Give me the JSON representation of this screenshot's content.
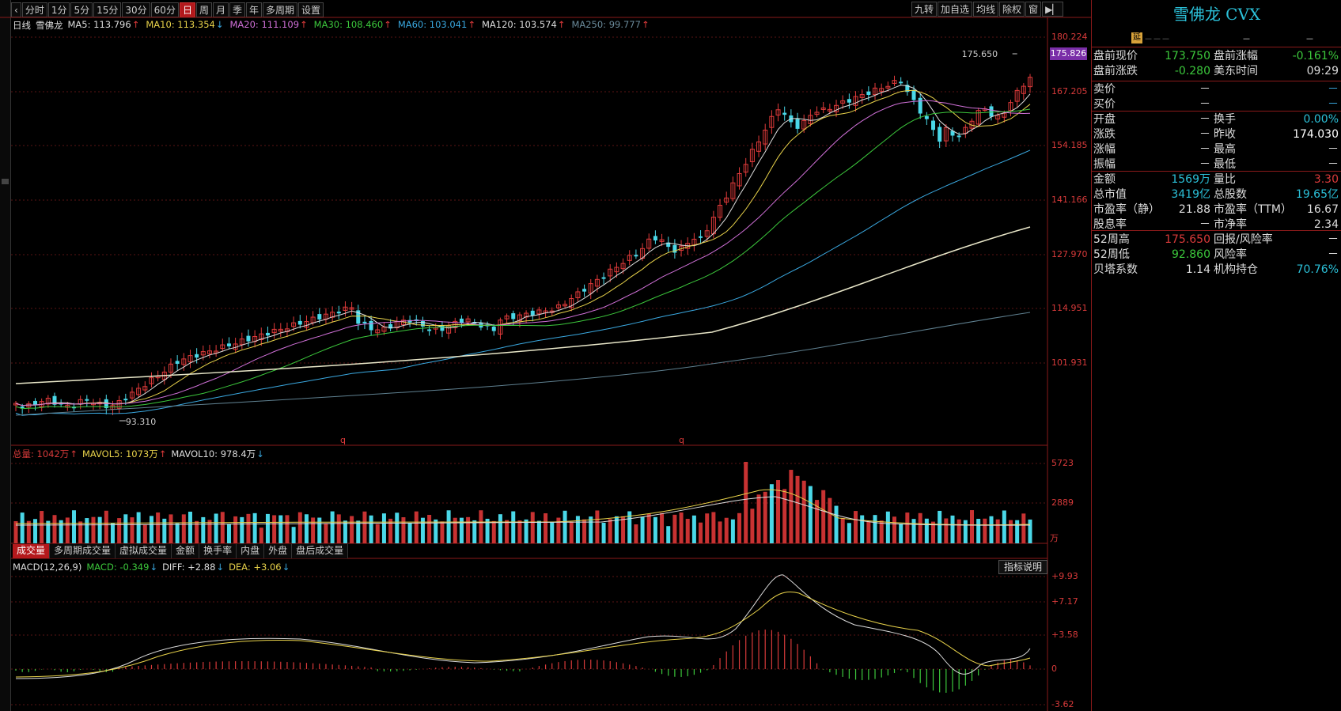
{
  "toolbar": {
    "periods": [
      "分时",
      "1分",
      "5分",
      "15分",
      "30分",
      "60分",
      "日",
      "周",
      "月",
      "季",
      "年",
      "多周期",
      "设置"
    ],
    "active_period": "日",
    "right_tools": [
      "九转",
      "加自选",
      "均线",
      "除权",
      "窗"
    ],
    "collapse_icon": "collapse-right-icon"
  },
  "legend": {
    "period_label": "日线",
    "stock_name": "雪佛龙",
    "ma": [
      {
        "label": "MA5: 113.796",
        "dir": "up",
        "color": "#dddddd"
      },
      {
        "label": "MA10: 113.354",
        "dir": "down",
        "color": "#e8d24a"
      },
      {
        "label": "MA20: 111.109",
        "dir": "up",
        "color": "#d070d8"
      },
      {
        "label": "MA30: 108.460",
        "dir": "up",
        "color": "#3cc83c"
      },
      {
        "label": "MA60: 103.041",
        "dir": "up",
        "color": "#3aa8e0"
      },
      {
        "label": "MA120: 103.574",
        "dir": "up",
        "color": "#dddddd"
      },
      {
        "label": "MA250: 99.777",
        "dir": "up",
        "color": "#6a8a9a"
      }
    ]
  },
  "price_axis": [
    "180.224",
    "167.205",
    "154.185",
    "141.166",
    "127.970",
    "114.951",
    "101.931"
  ],
  "current_price_tag": "175.826",
  "annotations": {
    "high": "175.650",
    "low": "93.310",
    "q_marks": [
      "q",
      "q"
    ]
  },
  "volume": {
    "legend": [
      {
        "label": "总量: 1042万",
        "dir": "up",
        "color": "#d83a3a"
      },
      {
        "label": "MAVOL5: 1073万",
        "dir": "up",
        "color": "#e8d24a"
      },
      {
        "label": "MAVOL10: 978.4万",
        "dir": "down",
        "color": "#dddddd"
      }
    ],
    "axis": [
      "5723",
      "2889"
    ],
    "unit": "万",
    "tabs": [
      "成交量",
      "多周期成交量",
      "虚拟成交量",
      "金额",
      "换手率",
      "内盘",
      "外盘",
      "盘后成交量"
    ],
    "active_tab": "成交量"
  },
  "macd": {
    "legend": [
      {
        "label": "MACD(12,26,9)",
        "dir": "",
        "color": "#dddddd"
      },
      {
        "label": "MACD: -0.349",
        "dir": "down",
        "color": "#3cc83c"
      },
      {
        "label": "DIFF: +2.88",
        "dir": "down",
        "color": "#dddddd"
      },
      {
        "label": "DEA: +3.06",
        "dir": "down",
        "color": "#e8d24a"
      }
    ],
    "axis": [
      "+9.93",
      "+7.17",
      "+3.58",
      "0",
      "-3.62"
    ],
    "explain_button": "指标说明"
  },
  "panel": {
    "title": "雪佛龙 CVX",
    "badge": "延",
    "top_row": [
      "－－－",
      "－",
      "－"
    ],
    "rows": [
      {
        "l1": "盘前现价",
        "v1": "173.750",
        "c1": "#3cc83c",
        "l2": "盘前涨幅",
        "v2": "-0.161%",
        "c2": "#3cc83c"
      },
      {
        "l1": "盘前涨跌",
        "v1": "-0.280",
        "c1": "#3cc83c",
        "l2": "美东时间",
        "v2": "09:29",
        "c2": "#dddddd"
      },
      {
        "l1": "卖价",
        "v1": "－",
        "c1": "#dddddd",
        "l2": "",
        "v2": "－",
        "c2": "#3aa8e0"
      },
      {
        "l1": "买价",
        "v1": "－",
        "c1": "#dddddd",
        "l2": "",
        "v2": "－",
        "c2": "#3aa8e0"
      },
      {
        "l1": "开盘",
        "v1": "－",
        "c1": "#dddddd",
        "l2": "换手",
        "v2": "0.00%",
        "c2": "#2bc0d8"
      },
      {
        "l1": "涨跌",
        "v1": "－",
        "c1": "#dddddd",
        "l2": "昨收",
        "v2": "174.030",
        "c2": "#ffffff"
      },
      {
        "l1": "涨幅",
        "v1": "－",
        "c1": "#dddddd",
        "l2": "最高",
        "v2": "－",
        "c2": "#dddddd"
      },
      {
        "l1": "振幅",
        "v1": "－",
        "c1": "#dddddd",
        "l2": "最低",
        "v2": "－",
        "c2": "#dddddd"
      },
      {
        "l1": "金额",
        "v1": "1569万",
        "c1": "#2bc0d8",
        "l2": "量比",
        "v2": "3.30",
        "c2": "#d83a3a"
      },
      {
        "l1": "总市值",
        "v1": "3419亿",
        "c1": "#2bc0d8",
        "l2": "总股数",
        "v2": "19.65亿",
        "c2": "#2bc0d8"
      },
      {
        "l1": "市盈率（静）",
        "v1": "21.88",
        "c1": "#dddddd",
        "l2": "市盈率（TTM）",
        "v2": "16.67",
        "c2": "#dddddd"
      },
      {
        "l1": "股息率",
        "v1": "－",
        "c1": "#dddddd",
        "l2": "市净率",
        "v2": "2.34",
        "c2": "#dddddd"
      },
      {
        "l1": "52周高",
        "v1": "175.650",
        "c1": "#d83a3a",
        "l2": "回报/风险率",
        "v2": "－",
        "c2": "#dddddd"
      },
      {
        "l1": "52周低",
        "v1": "92.860",
        "c1": "#3cc83c",
        "l2": "风险率",
        "v2": "－",
        "c2": "#dddddd"
      },
      {
        "l1": "贝塔系数",
        "v1": "1.14",
        "c1": "#dddddd",
        "l2": "机构持仓",
        "v2": "70.76%",
        "c2": "#2bc0d8"
      }
    ]
  }
}
